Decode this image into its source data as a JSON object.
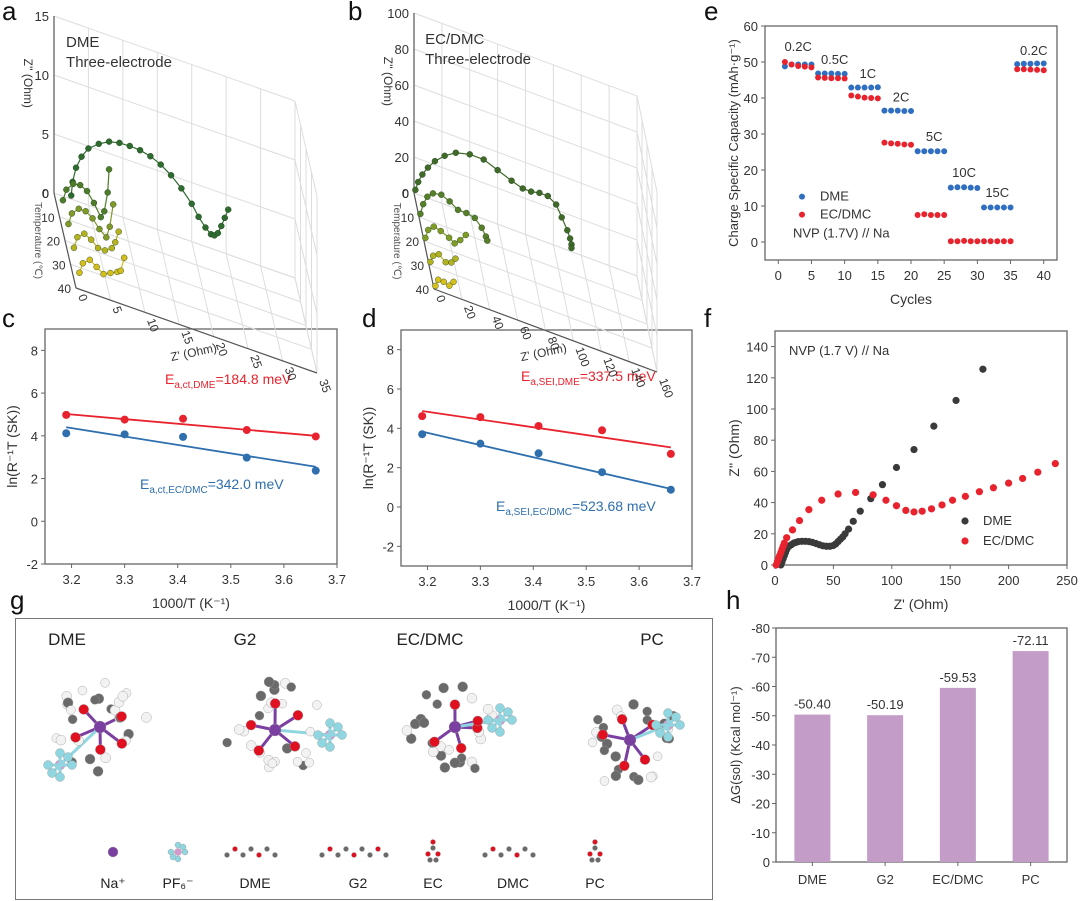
{
  "panels": {
    "a": "a",
    "b": "b",
    "c": "c",
    "d": "d",
    "e": "e",
    "f": "f",
    "g": "g",
    "h": "h"
  },
  "chart_data": [
    {
      "id": "a",
      "type": "scatter",
      "subtype": "3d-nyquist",
      "title": "DME",
      "subtitle": "Three-electrode",
      "xlabel": "Z' (Ohm)",
      "ylabel": "Z'' (Ohm)",
      "zlabel": "Temperature (℃)",
      "xticks": [
        "0",
        "5",
        "10",
        "15",
        "20",
        "25",
        "30",
        "35"
      ],
      "yticks": [
        "0",
        "5",
        "10",
        "15"
      ],
      "zticks": [
        "0",
        "10",
        "20",
        "30",
        "40"
      ],
      "xlim": [
        0,
        35
      ],
      "ylim": [
        0,
        15
      ],
      "zlim": [
        0,
        40
      ],
      "series": [
        {
          "name": "0",
          "color": "#2e6b2e",
          "x": [
            2.5,
            2.7,
            3.2,
            4,
            5,
            6.5,
            8,
            9.5,
            11,
            12.5,
            14,
            15.5,
            17,
            18.5,
            20,
            21,
            22,
            22.8,
            23.3,
            23.8,
            24.3,
            24.8,
            25.3
          ],
          "y": [
            0.3,
            1.5,
            2.8,
            3.9,
            4.8,
            5.5,
            6.0,
            6.2,
            6.25,
            6.2,
            6.0,
            5.6,
            5.0,
            4.2,
            3.2,
            2.3,
            1.6,
            1.2,
            1.2,
            1.5,
            2.2,
            3.0,
            3.8
          ]
        },
        {
          "name": "10",
          "color": "#4e7d2a",
          "x": [
            0.5,
            1,
            2,
            3,
            4,
            5,
            6,
            6.5,
            7,
            7.2
          ],
          "y": [
            1.5,
            2.5,
            3.2,
            3.3,
            3.0,
            2.2,
            1.2,
            1.8,
            3.5,
            5.5
          ]
        },
        {
          "name": "20",
          "color": "#7f9a28",
          "x": [
            0.5,
            1,
            2,
            3,
            4,
            5,
            6,
            6.5,
            7
          ],
          "y": [
            1.5,
            2.5,
            3.1,
            3.1,
            2.7,
            2.0,
            1.5,
            2.5,
            4.5
          ]
        },
        {
          "name": "30",
          "color": "#b5b21f",
          "x": [
            0.5,
            1,
            2,
            3,
            4,
            5,
            6,
            6.5,
            7
          ],
          "y": [
            1.5,
            2.5,
            3.0,
            2.7,
            2.2,
            2.2,
            2.6,
            3.2,
            4.2
          ]
        },
        {
          "name": "40",
          "color": "#d4be1c",
          "x": [
            0.5,
            1,
            2,
            3,
            4,
            5,
            6,
            6.5,
            7
          ],
          "y": [
            1.4,
            2.3,
            2.8,
            2.4,
            2.0,
            2.3,
            2.6,
            2.8,
            4.0
          ]
        }
      ]
    },
    {
      "id": "b",
      "type": "scatter",
      "subtype": "3d-nyquist",
      "title": "EC/DMC",
      "subtitle": "Three-electrode",
      "xlabel": "Z' (Ohm)",
      "ylabel": "Z'' (Ohm)",
      "zlabel": "Temperature (℃)",
      "xticks": [
        "0",
        "20",
        "40",
        "60",
        "80",
        "100",
        "120",
        "140",
        "160"
      ],
      "yticks": [
        "0",
        "20",
        "40",
        "60",
        "80",
        "100"
      ],
      "zticks": [
        "0",
        "10",
        "20",
        "30",
        "40"
      ],
      "xlim": [
        0,
        160
      ],
      "ylim": [
        0,
        100
      ],
      "zlim": [
        0,
        40
      ],
      "series": [
        {
          "name": "0",
          "color": "#3f6a28",
          "x": [
            1,
            3,
            6,
            10,
            15,
            22,
            30,
            40,
            50,
            60,
            70,
            78,
            84,
            90,
            96,
            102,
            106,
            110,
            112,
            113,
            113
          ],
          "y": [
            2,
            7,
            12,
            17,
            22,
            27,
            31,
            33,
            33,
            30,
            27,
            25,
            25,
            26,
            26,
            23,
            17,
            11,
            7,
            4,
            2
          ]
        },
        {
          "name": "10",
          "color": "#577f28",
          "x": [
            1,
            3,
            6,
            10,
            16,
            22,
            28,
            34,
            40,
            45,
            48,
            49
          ],
          "y": [
            2,
            8,
            13,
            16,
            17,
            15,
            12,
            12,
            11,
            7,
            3,
            1
          ]
        },
        {
          "name": "20",
          "color": "#7f9d25",
          "x": [
            1,
            3,
            7,
            12,
            18,
            22,
            26,
            30
          ],
          "y": [
            2,
            7,
            10,
            9,
            7,
            5,
            8,
            12
          ]
        },
        {
          "name": "30",
          "color": "#b2b220",
          "x": [
            1,
            3,
            7,
            12,
            16,
            19
          ],
          "y": [
            2,
            6,
            8,
            5,
            6,
            9
          ]
        },
        {
          "name": "40",
          "color": "#d6c01b",
          "x": [
            1,
            3,
            7,
            11,
            14
          ],
          "y": [
            2,
            6,
            6,
            5,
            8
          ]
        }
      ]
    },
    {
      "id": "c",
      "type": "scatter",
      "xlabel": "1000/T (K⁻¹)",
      "ylabel": "ln(R⁻¹T (SK))",
      "xlim": [
        3.15,
        3.7
      ],
      "ylim": [
        -2,
        9
      ],
      "xticks": [
        "3.2",
        "3.3",
        "3.4",
        "3.5",
        "3.6",
        "3.7"
      ],
      "yticks": [
        "-2",
        "0",
        "2",
        "4",
        "6",
        "8"
      ],
      "series": [
        {
          "name": "DME",
          "color": "#e8232e",
          "x": [
            3.19,
            3.3,
            3.41,
            3.53,
            3.66
          ],
          "y": [
            4.98,
            4.76,
            4.8,
            4.27,
            3.97
          ],
          "fit": [
            [
              3.19,
              5.02
            ],
            [
              3.66,
              4.0
            ]
          ],
          "annotation": "E",
          "annotation_sub": "a,ct,DME",
          "annotation_value": "=184.8 meV"
        },
        {
          "name": "EC/DMC",
          "color": "#2f6fae",
          "x": [
            3.19,
            3.3,
            3.41,
            3.53,
            3.66
          ],
          "y": [
            4.12,
            4.07,
            3.95,
            2.98,
            2.37
          ],
          "fit": [
            [
              3.19,
              4.4
            ],
            [
              3.66,
              2.55
            ]
          ],
          "annotation": "E",
          "annotation_sub": "a,ct,EC/DMC",
          "annotation_value": "=342.0 meV"
        }
      ]
    },
    {
      "id": "d",
      "type": "scatter",
      "xlabel": "1000/T (K⁻¹)",
      "ylabel": "ln(R⁻¹T (SK))",
      "xlim": [
        3.15,
        3.7
      ],
      "ylim": [
        -3,
        9
      ],
      "xticks": [
        "3.2",
        "3.3",
        "3.4",
        "3.5",
        "3.6",
        "3.7"
      ],
      "yticks": [
        "-2",
        "0",
        "2",
        "4",
        "6",
        "8"
      ],
      "series": [
        {
          "name": "DME",
          "color": "#e8232e",
          "x": [
            3.19,
            3.3,
            3.41,
            3.53,
            3.66
          ],
          "y": [
            4.62,
            4.57,
            4.12,
            3.9,
            2.7
          ],
          "fit": [
            [
              3.19,
              4.88
            ],
            [
              3.66,
              3.03
            ]
          ],
          "annotation": "E",
          "annotation_sub": "a,SEI,DME",
          "annotation_value": "=337.5 meV"
        },
        {
          "name": "EC/DMC",
          "color": "#2f6fae",
          "x": [
            3.19,
            3.3,
            3.41,
            3.53,
            3.66
          ],
          "y": [
            3.7,
            3.22,
            2.73,
            1.77,
            0.88
          ],
          "fit": [
            [
              3.19,
              3.83
            ],
            [
              3.66,
              0.92
            ]
          ],
          "annotation": "E",
          "annotation_sub": "a,SEI,EC/DMC",
          "annotation_value": "=523.68 meV"
        }
      ]
    },
    {
      "id": "e",
      "type": "scatter",
      "xlabel": "Cycles",
      "ylabel": "Charge Specific Capacity (mAh·g⁻¹)",
      "xlim": [
        -2,
        42
      ],
      "ylim": [
        -5,
        60
      ],
      "xticks": [
        "0",
        "5",
        "10",
        "15",
        "20",
        "25",
        "30",
        "35",
        "40"
      ],
      "yticks": [
        "0",
        "10",
        "20",
        "30",
        "40",
        "50",
        "60"
      ],
      "annotation": "NVP (1.7V) // Na",
      "rate_labels": [
        {
          "text": "0.2C",
          "x": 3,
          "y": 53
        },
        {
          "text": "0.5C",
          "x": 8.5,
          "y": 49.5
        },
        {
          "text": "1C",
          "x": 13.5,
          "y": 45.5
        },
        {
          "text": "2C",
          "x": 18.5,
          "y": 39
        },
        {
          "text": "5C",
          "x": 23.5,
          "y": 28
        },
        {
          "text": "10C",
          "x": 28,
          "y": 18
        },
        {
          "text": "15C",
          "x": 33,
          "y": 12.5
        },
        {
          "text": "0.2C",
          "x": 38.5,
          "y": 52
        }
      ],
      "series": [
        {
          "name": "DME",
          "color": "#2f6ec0",
          "x": [
            1,
            2,
            3,
            4,
            5,
            6,
            7,
            8,
            9,
            10,
            11,
            12,
            13,
            14,
            15,
            16,
            17,
            18,
            19,
            20,
            21,
            22,
            23,
            24,
            25,
            26,
            27,
            28,
            29,
            30,
            31,
            32,
            33,
            34,
            35,
            36,
            37,
            38,
            39,
            40
          ],
          "y": [
            48.8,
            49.3,
            49.3,
            49.3,
            49.3,
            46.8,
            46.8,
            46.8,
            46.7,
            46.7,
            42.9,
            42.9,
            42.9,
            42.9,
            43.0,
            36.5,
            36.5,
            36.5,
            36.4,
            36.4,
            25.2,
            25.2,
            25.2,
            25.2,
            25.2,
            15.1,
            15.2,
            15.2,
            15.1,
            15.0,
            9.6,
            9.6,
            9.6,
            9.6,
            9.6,
            49.4,
            49.5,
            49.5,
            49.6,
            49.6
          ]
        },
        {
          "name": "EC/DMC",
          "color": "#e8232e",
          "x": [
            1,
            2,
            3,
            4,
            5,
            6,
            7,
            8,
            9,
            10,
            11,
            12,
            13,
            14,
            15,
            16,
            17,
            18,
            19,
            20,
            21,
            22,
            23,
            24,
            25,
            26,
            27,
            28,
            29,
            30,
            31,
            32,
            33,
            34,
            35,
            36,
            37,
            38,
            39,
            40
          ],
          "y": [
            50.0,
            49.3,
            48.9,
            48.7,
            48.5,
            45.7,
            45.6,
            45.5,
            45.5,
            45.4,
            40.7,
            40.4,
            40.1,
            40.0,
            39.9,
            27.6,
            27.4,
            27.3,
            27.1,
            27.0,
            7.5,
            7.7,
            7.5,
            7.5,
            7.5,
            0.2,
            0.2,
            0.3,
            0.2,
            0.2,
            0.2,
            0.2,
            0.2,
            0.2,
            0.2,
            48.0,
            48.0,
            47.9,
            47.8,
            47.7
          ]
        }
      ]
    },
    {
      "id": "f",
      "type": "scatter",
      "xlabel": "Z' (Ohm)",
      "ylabel": "Z'' (Ohm)",
      "xlim": [
        0,
        250
      ],
      "ylim": [
        0,
        150
      ],
      "xticks": [
        "0",
        "50",
        "100",
        "150",
        "200",
        "250"
      ],
      "yticks": [
        "0",
        "20",
        "40",
        "60",
        "80",
        "100",
        "120",
        "140"
      ],
      "annotation": "NVP (1.7 V) // Na",
      "legend": "bottom-right",
      "series": [
        {
          "name": "DME",
          "color": "#3a3a3a",
          "x": [
            5,
            6,
            7,
            8,
            9,
            10,
            12,
            14,
            16,
            18,
            20,
            23,
            26,
            29,
            32,
            35,
            38,
            41,
            44,
            47,
            50,
            52,
            54,
            56,
            58,
            60,
            63,
            67,
            73,
            82,
            92,
            104,
            119,
            136,
            155,
            178
          ],
          "y": [
            0,
            2,
            4,
            6,
            8,
            10,
            12,
            13,
            14,
            14.5,
            15,
            15.2,
            15.2,
            15,
            14.5,
            13.8,
            13,
            12.3,
            12,
            12,
            12.5,
            13.5,
            15,
            16.5,
            18,
            20,
            23,
            28,
            34.5,
            42.5,
            51.5,
            62.5,
            74,
            89,
            105.5,
            125.5
          ]
        },
        {
          "name": "EC/DMC",
          "color": "#e8232e",
          "x": [
            1,
            2,
            3,
            4,
            5,
            6,
            7,
            8,
            10,
            15,
            21,
            29,
            40,
            54,
            69,
            84,
            95,
            104,
            112,
            119,
            126,
            134,
            143,
            152,
            163,
            175,
            187,
            200,
            212,
            225,
            240
          ],
          "y": [
            0,
            2,
            4,
            6,
            8,
            10,
            12,
            14,
            17.5,
            22.5,
            28.5,
            35.5,
            41.5,
            45.5,
            46.5,
            45,
            41.5,
            38,
            35,
            34,
            34.5,
            36,
            38.5,
            41.5,
            44,
            47,
            49.5,
            52.5,
            55.5,
            59.5,
            65
          ]
        }
      ]
    },
    {
      "id": "h",
      "type": "bar",
      "xlabel": "",
      "ylabel": "ΔG(sol) (Kcal mol⁻¹)",
      "categories": [
        "DME",
        "G2",
        "EC/DMC",
        "PC"
      ],
      "values": [
        -50.4,
        -50.19,
        -59.53,
        -72.11
      ],
      "value_labels": [
        "-50.40",
        "-50.19",
        "-59.53",
        "-72.11"
      ],
      "ylim": [
        0,
        -80
      ],
      "yticks": [
        "0",
        "-10",
        "-20",
        "-30",
        "-40",
        "-50",
        "-60",
        "-70",
        "-80"
      ],
      "bar_color": "#c49cc8"
    }
  ],
  "molecules": {
    "cluster_titles": [
      "DME",
      "G2",
      "EC/DMC",
      "PC"
    ],
    "legend": [
      {
        "label": "Na⁺",
        "icon": "na-ion-icon"
      },
      {
        "label": "PF₆⁻",
        "icon": "pf6-anion-icon"
      },
      {
        "label": "DME",
        "icon": "dme-molecule-icon"
      },
      {
        "label": "G2",
        "icon": "g2-molecule-icon"
      },
      {
        "label": "EC",
        "icon": "ec-molecule-icon"
      },
      {
        "label": "DMC",
        "icon": "dmc-molecule-icon"
      },
      {
        "label": "PC",
        "icon": "pc-molecule-icon"
      }
    ],
    "atom_colors": {
      "Na": "#7a3fa0",
      "P": "#d49ad0",
      "F": "#8fd6e0",
      "O": "#e01020",
      "C": "#6a6a6a",
      "H": "#f2f2f2"
    }
  }
}
